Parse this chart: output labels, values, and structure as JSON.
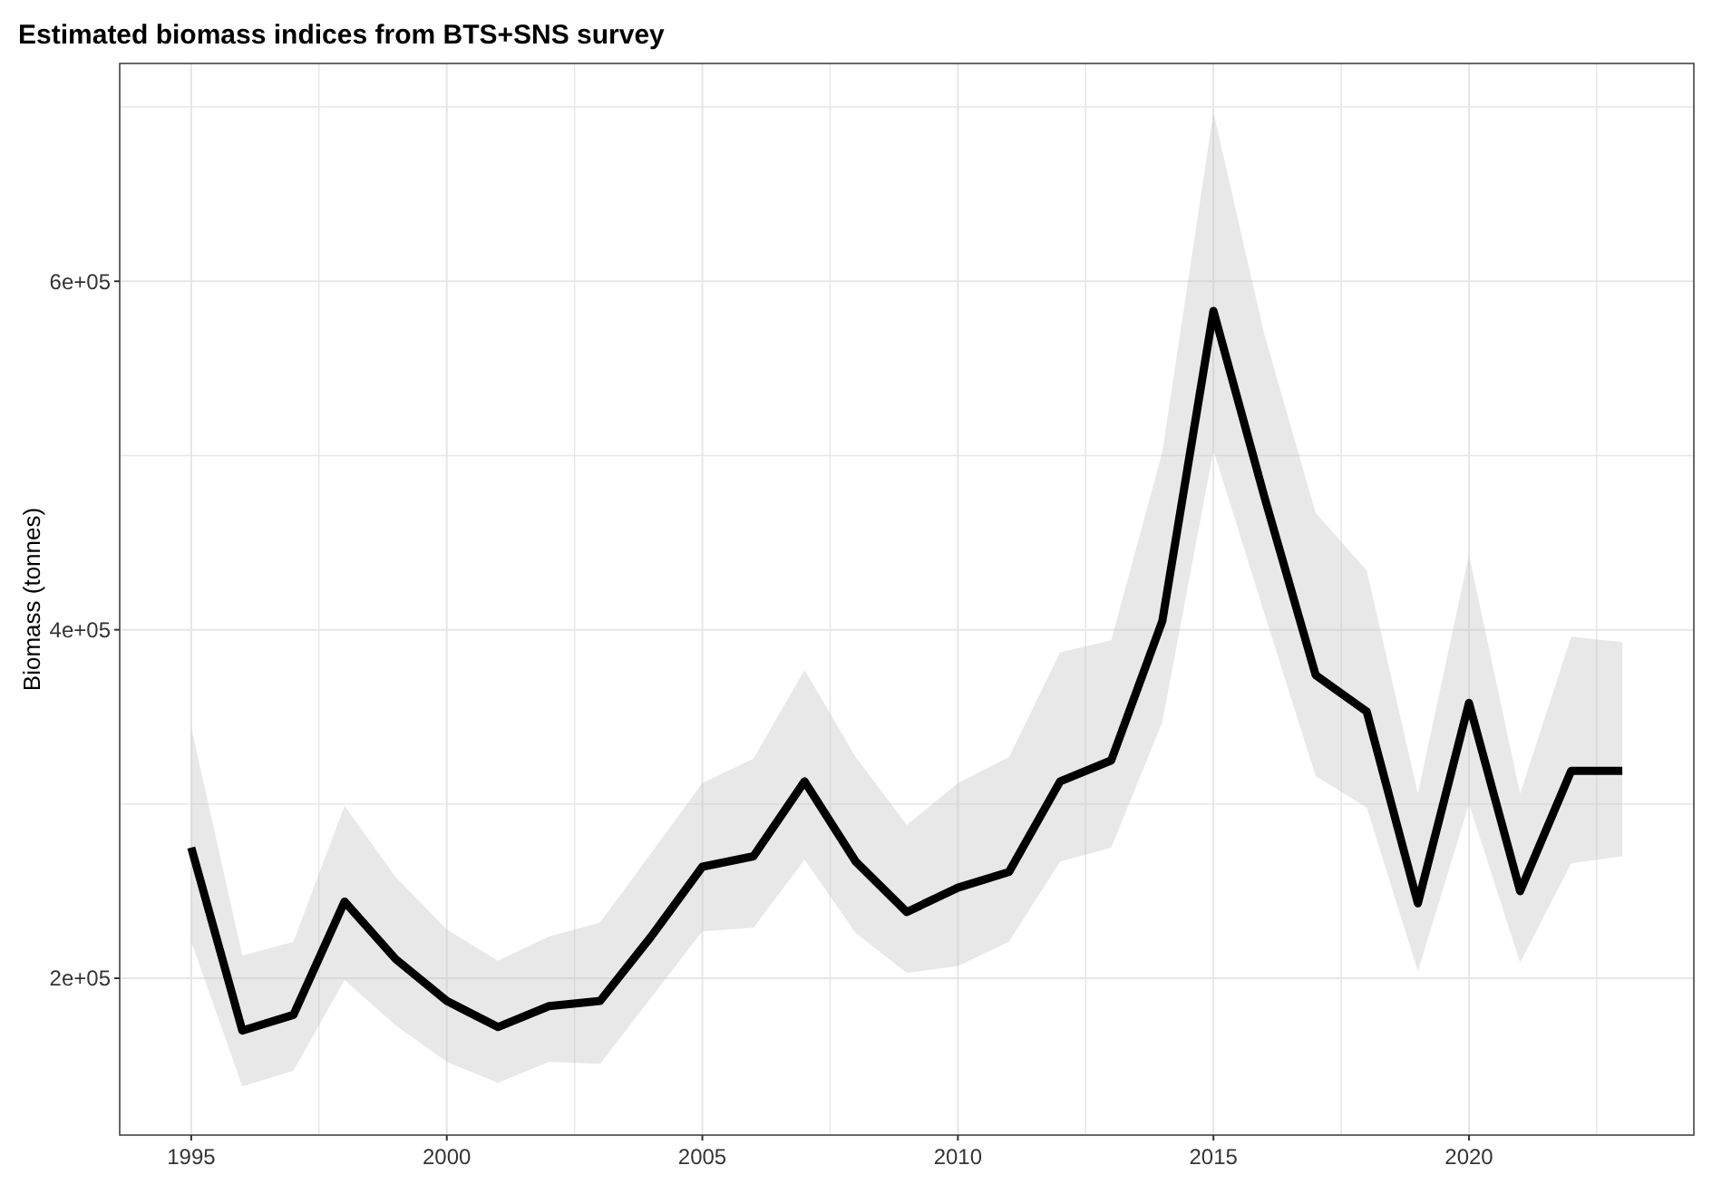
{
  "chart_data": {
    "type": "line",
    "title": "Estimated biomass indices from BTS+SNS survey",
    "ylabel": "Biomass (tonnes)",
    "x": [
      1995,
      1996,
      1997,
      1998,
      1999,
      2000,
      2001,
      2002,
      2003,
      2004,
      2005,
      2006,
      2007,
      2008,
      2009,
      2010,
      2011,
      2012,
      2013,
      2014,
      2015,
      2016,
      2017,
      2018,
      2019,
      2020,
      2021,
      2022,
      2023
    ],
    "series": [
      {
        "color": "#000000",
        "values": [
          275000,
          170000,
          179000,
          244000,
          211000,
          187000,
          172000,
          184000,
          187000,
          224000,
          264000,
          270000,
          313000,
          267000,
          238000,
          252000,
          261000,
          313000,
          325000,
          405000,
          583000,
          476000,
          374000,
          353000,
          243000,
          358000,
          250000,
          319000,
          319000
        ],
        "upper": [
          344000,
          213000,
          221000,
          299000,
          258000,
          228000,
          210000,
          224000,
          232000,
          272000,
          312000,
          326000,
          377000,
          327000,
          288000,
          312000,
          327000,
          387000,
          394000,
          502000,
          697000,
          569000,
          467000,
          434000,
          306000,
          443000,
          306000,
          396000,
          393000
        ],
        "lower": [
          221000,
          138000,
          147000,
          199000,
          173000,
          152000,
          140000,
          152000,
          151000,
          189000,
          227000,
          229000,
          268000,
          226000,
          203000,
          207000,
          221000,
          267000,
          275000,
          347000,
          503000,
          409000,
          316000,
          298000,
          204000,
          300000,
          209000,
          266000,
          270000
        ]
      }
    ],
    "xlim": [
      1993.6,
      2024.4
    ],
    "ylim": [
      110000,
      725000
    ],
    "xticks": [
      {
        "value": 1997.5,
        "label": null
      },
      1995,
      2000,
      {
        "value": 2002.5,
        "label": null
      },
      2005,
      {
        "value": 2007.5,
        "label": null
      },
      2010,
      {
        "value": 2012.5,
        "label": null
      },
      2015,
      {
        "value": 2017.5,
        "label": null
      },
      2020,
      {
        "value": 2022.5,
        "label": null
      }
    ],
    "yticks": [
      {
        "value": 200000,
        "label": "2e+05"
      },
      {
        "value": 300000,
        "label": null
      },
      {
        "value": 400000,
        "label": "4e+05"
      },
      {
        "value": 500000,
        "label": null
      },
      {
        "value": 600000,
        "label": "6e+05"
      },
      {
        "value": 700000,
        "label": null
      }
    ],
    "grid": true,
    "line_style": "solid",
    "marker": "none"
  }
}
